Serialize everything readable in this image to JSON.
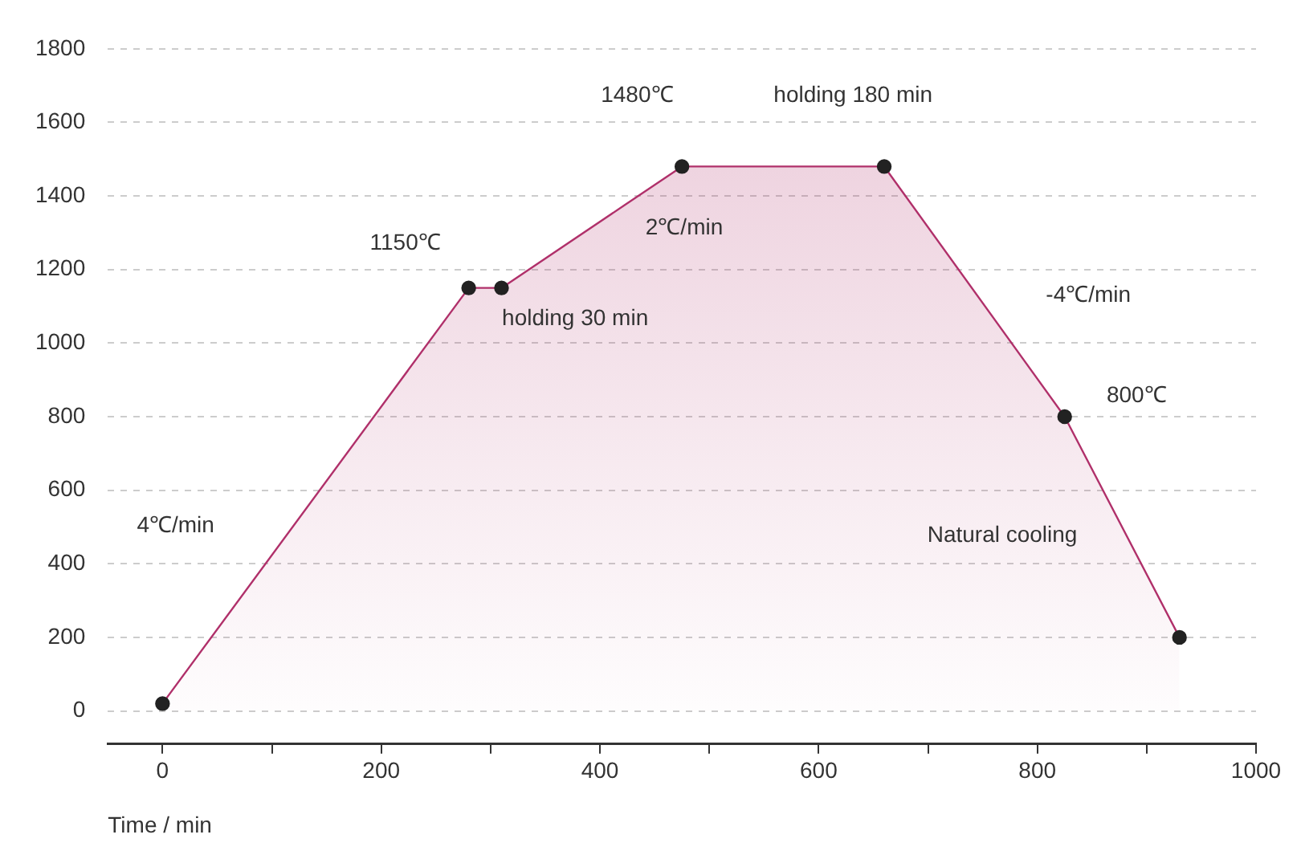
{
  "chart_data": {
    "type": "area",
    "xlabel": "Time / min",
    "x": [
      0,
      280,
      310,
      475,
      660,
      825,
      930
    ],
    "series": [
      {
        "color": "#b0306a",
        "values": [
          20,
          1150,
          1150,
          1480,
          1480,
          800,
          200
        ]
      }
    ],
    "xlim": [
      -50,
      1000
    ],
    "xticks": [
      0,
      {
        "value": 100,
        "label": null
      },
      200,
      {
        "value": 300,
        "label": null
      },
      400,
      {
        "value": 500,
        "label": null
      },
      600,
      {
        "value": 700,
        "label": null
      },
      800,
      {
        "value": 900,
        "label": null
      },
      1000
    ],
    "ylim": [
      -90,
      1800
    ],
    "yticks": [
      0,
      200,
      400,
      600,
      800,
      1000,
      1200,
      1400,
      1600,
      1800
    ],
    "grid": "y",
    "legend": false,
    "marker": "circle",
    "line_style": "solid",
    "annotations": [
      "1480℃",
      "holding 180 min",
      "1150℃",
      "2℃/min",
      "holding 30 min",
      "-4℃/min",
      "800℃",
      "4℃/min",
      "Natural cooling"
    ]
  }
}
